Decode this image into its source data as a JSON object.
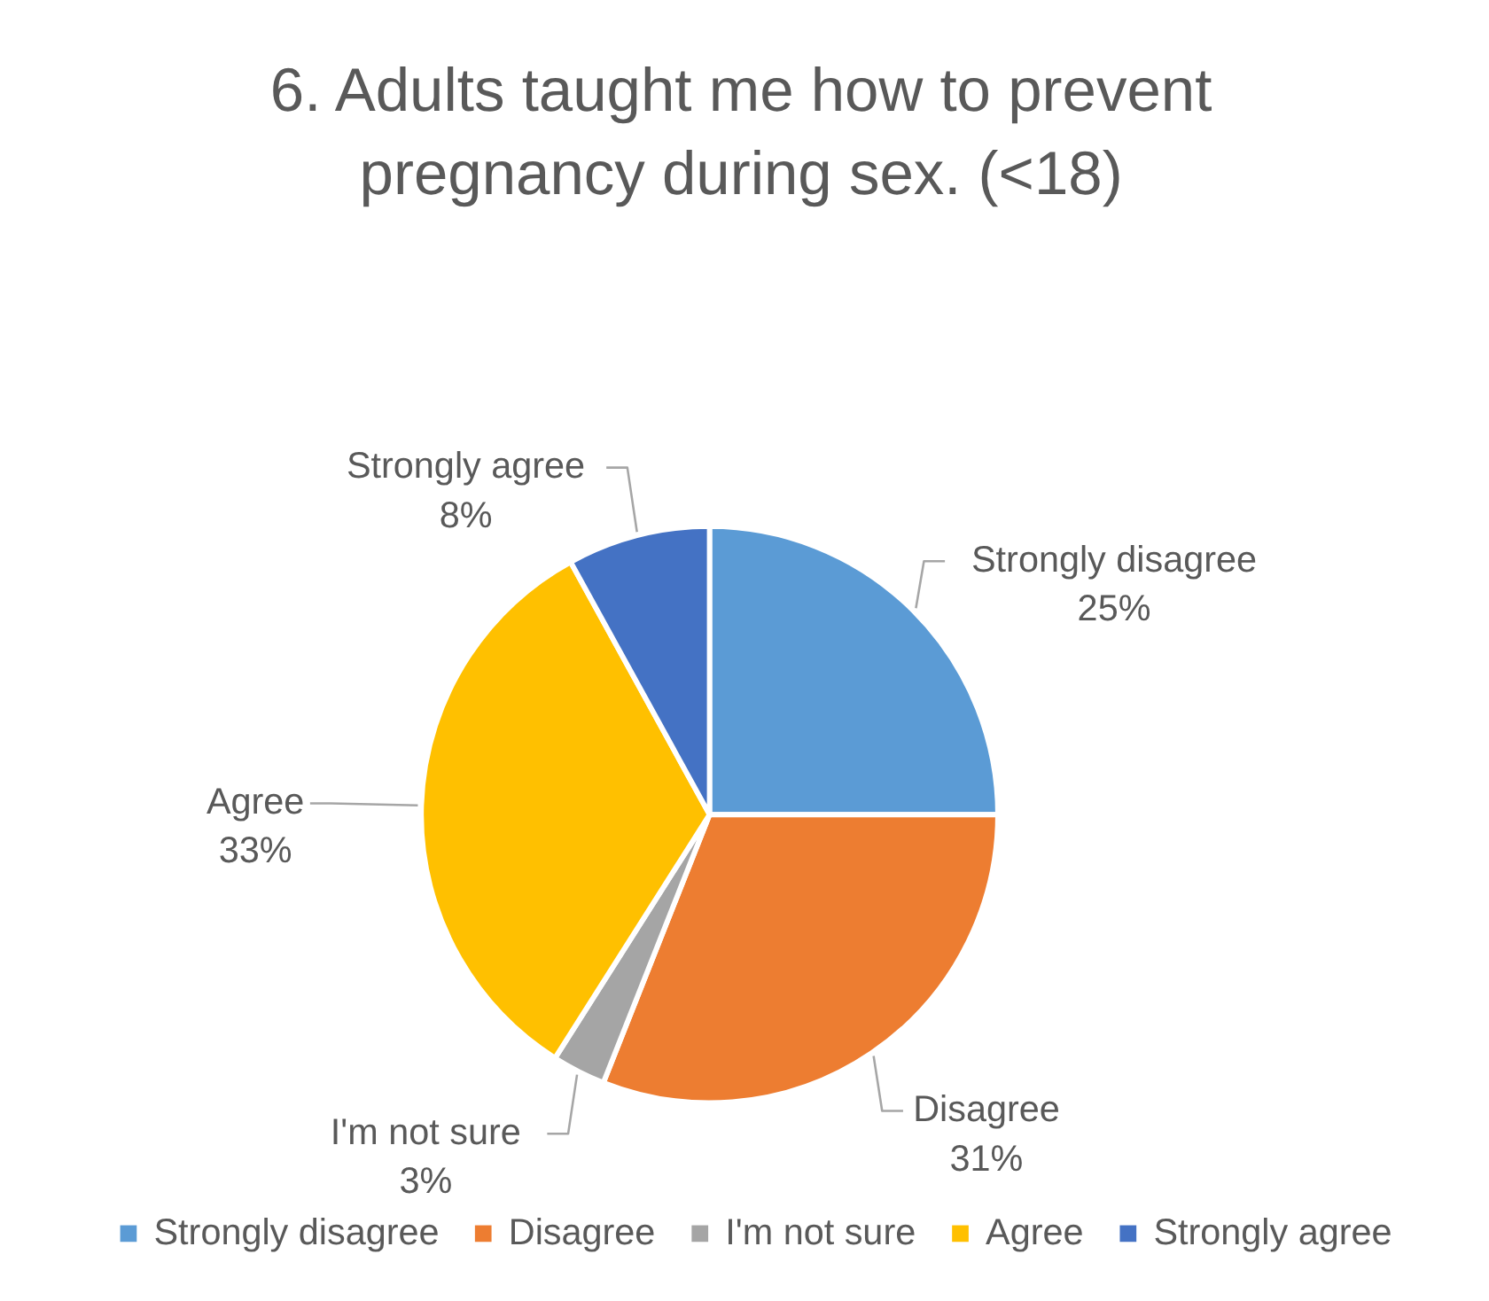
{
  "chart_data": {
    "type": "pie",
    "title": "6. Adults taught me how to prevent pregnancy during sex. (<18)",
    "categories": [
      "Strongly disagree",
      "Disagree",
      "I'm not sure",
      "Agree",
      "Strongly agree"
    ],
    "values": [
      25,
      31,
      3,
      33,
      8
    ],
    "value_labels": [
      "25%",
      "31%",
      "3%",
      "33%",
      "8%"
    ],
    "colors": [
      "#5b9bd5",
      "#ed7d31",
      "#a5a5a5",
      "#ffc000",
      "#4472c4"
    ],
    "legend": "bottom"
  }
}
